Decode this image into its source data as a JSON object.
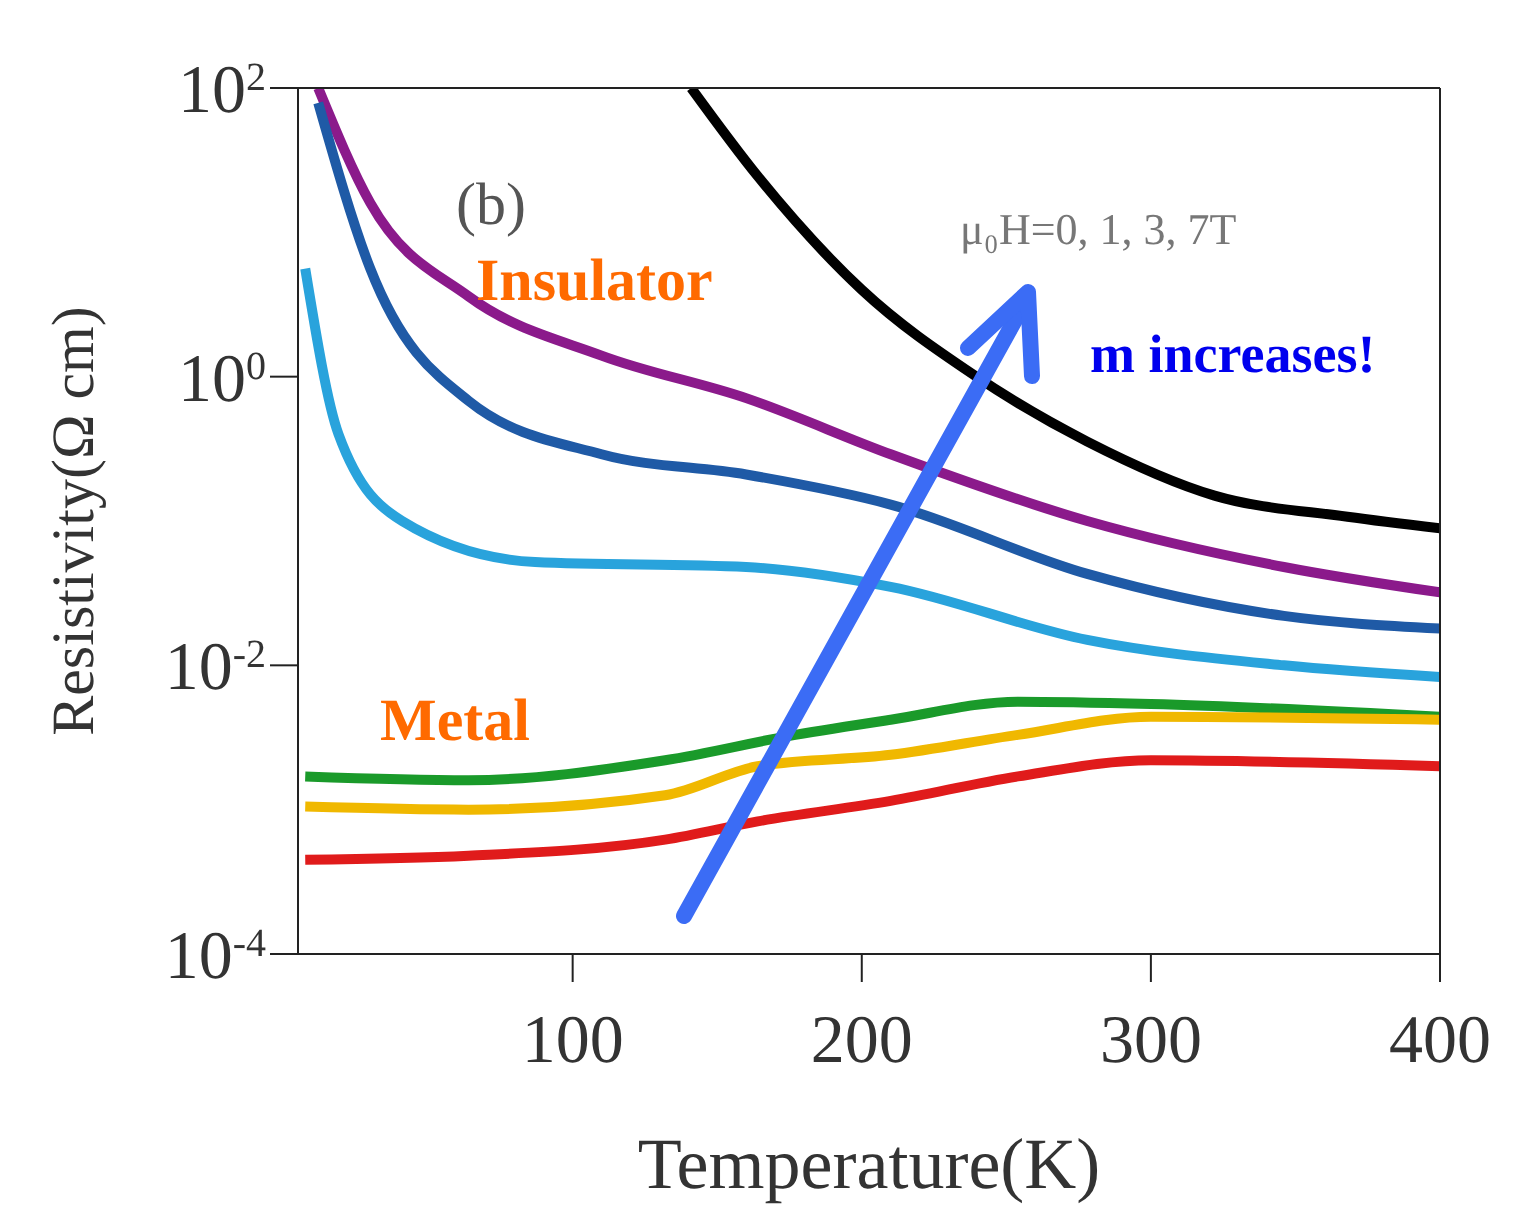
{
  "chart_data": {
    "type": "line",
    "xlabel": "Temperature(K)",
    "ylabel": "Resistivity(Ω cm)",
    "log": "y",
    "xlim": [
      5,
      400
    ],
    "xticks": [
      100,
      200,
      300,
      400
    ],
    "ylim": [
      0.0001,
      100
    ],
    "yticks": [
      {
        "value": 0.0001,
        "label": "10$^{-4}$"
      },
      {
        "value": 0.01,
        "label": "10$^{-2}$"
      },
      {
        "value": 1,
        "label": "10$^{0}$"
      },
      {
        "value": 100,
        "label": "10$^{2}$"
      }
    ],
    "grid": false,
    "legend": false,
    "marker": "none",
    "line_style": "solid",
    "series": [
      {
        "color": "#000000",
        "x": [
          141,
          164,
          200,
          239,
          278,
          322,
          368,
          400
        ],
        "values": [
          100,
          24.5,
          4,
          1.02,
          0.355,
          0.15,
          0.107,
          0.089
        ]
      },
      {
        "color": "#8b1a8b",
        "x": [
          12,
          30,
          64,
          110,
          160,
          210,
          278,
          346,
          400
        ],
        "values": [
          100,
          16,
          3.6,
          1.4,
          0.71,
          0.29,
          0.1,
          0.048,
          0.032
        ]
      },
      {
        "color": "#1f5aa6",
        "x": [
          12,
          30,
          64,
          110,
          160,
          210,
          278,
          346,
          400
        ],
        "values": [
          79,
          5.6,
          0.68,
          0.29,
          0.21,
          0.13,
          0.043,
          0.022,
          0.018
        ]
      },
      {
        "color": "#29a3dc",
        "x": [
          7.5,
          19,
          41,
          87,
          160,
          210,
          278,
          346,
          400
        ],
        "values": [
          5.6,
          0.4,
          0.1,
          0.052,
          0.048,
          0.035,
          0.015,
          0.01,
          0.0083
        ]
      },
      {
        "color": "#1a9a2a",
        "x": [
          7.5,
          64,
          132,
          177,
          210,
          254,
          300,
          400
        ],
        "values": [
          0.0017,
          0.0016,
          0.0022,
          0.0033,
          0.0042,
          0.0056,
          0.0054,
          0.0044
        ]
      },
      {
        "color": "#f0b800",
        "x": [
          7.5,
          64,
          132,
          164,
          210,
          254,
          300,
          400
        ],
        "values": [
          0.00105,
          0.001,
          0.00126,
          0.002,
          0.0024,
          0.0033,
          0.0044,
          0.0042
        ]
      },
      {
        "color": "#e01b1b",
        "x": [
          7.5,
          64,
          132,
          164,
          210,
          254,
          300,
          400
        ],
        "values": [
          0.00045,
          0.00048,
          0.00062,
          0.00083,
          0.00115,
          0.0017,
          0.0022,
          0.002
        ]
      }
    ],
    "annotations": [
      "(b)",
      "μ₀H=0, 1, 3, 7T",
      "Insulator",
      "Metal",
      "m increases!"
    ]
  }
}
